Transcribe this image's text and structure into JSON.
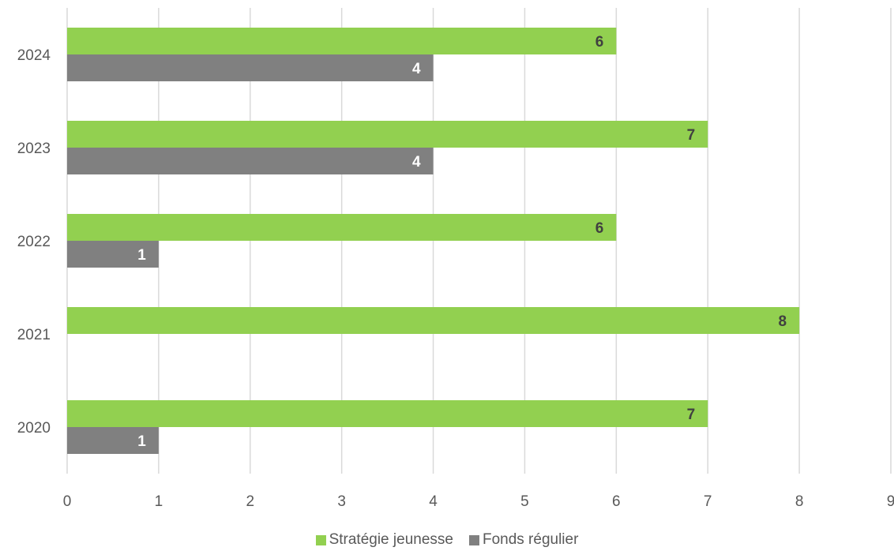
{
  "chart_data": {
    "type": "bar",
    "orientation": "horizontal",
    "categories": [
      "2020",
      "2021",
      "2022",
      "2023",
      "2024"
    ],
    "series": [
      {
        "name": "Stratégie jeunesse",
        "color": "#92D050",
        "label_color": "#404040",
        "values": [
          7,
          8,
          6,
          7,
          6
        ]
      },
      {
        "name": "Fonds régulier",
        "color": "#808080",
        "label_color": "#ffffff",
        "values": [
          1,
          null,
          1,
          4,
          4
        ]
      }
    ],
    "xlim": [
      0,
      9
    ],
    "xticks": [
      "0",
      "1",
      "2",
      "3",
      "4",
      "5",
      "6",
      "7",
      "8",
      "9"
    ],
    "grid": true,
    "legend_position": "bottom",
    "title": "",
    "xlabel": "",
    "ylabel": ""
  }
}
